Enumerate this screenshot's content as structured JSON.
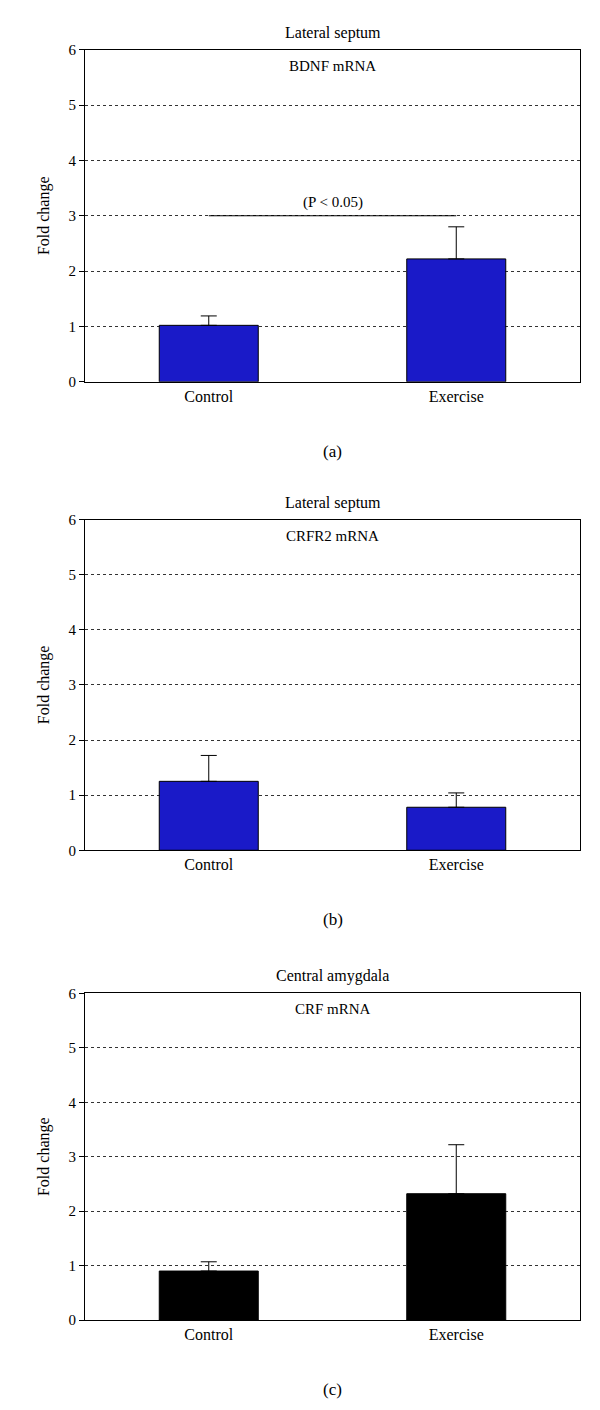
{
  "chart_data": [
    {
      "type": "bar",
      "title": "Lateral septum",
      "subtitle": "BDNF mRNA",
      "x_label": "(a)",
      "y_label": "Fold change",
      "categories": [
        "Control",
        "Exercise"
      ],
      "values": [
        1.02,
        2.22
      ],
      "error": [
        0.17,
        0.58
      ],
      "color": "#1a1ac8",
      "ylim": [
        0,
        6
      ],
      "yticks": [
        0,
        1,
        2,
        3,
        4,
        5,
        6
      ],
      "grid": true,
      "annotations": [
        {
          "text": "(P < 0.05)",
          "x0": "Control",
          "x1": "Exercise",
          "y": 3
        }
      ]
    },
    {
      "type": "bar",
      "title": "Lateral septum",
      "subtitle": "CRFR2 mRNA",
      "x_label": "(b)",
      "y_label": "Fold change",
      "categories": [
        "Control",
        "Exercise"
      ],
      "values": [
        1.25,
        0.78
      ],
      "error": [
        0.47,
        0.26
      ],
      "color": "#1a1ac8",
      "ylim": [
        0,
        6
      ],
      "yticks": [
        0,
        1,
        2,
        3,
        4,
        5,
        6
      ],
      "grid": true
    },
    {
      "type": "bar",
      "title": "Central amygdala",
      "subtitle": "CRF mRNA",
      "x_label": "(c)",
      "y_label": "Fold change",
      "categories": [
        "Control",
        "Exercise"
      ],
      "values": [
        0.9,
        2.32
      ],
      "error": [
        0.17,
        0.9
      ],
      "color": "#000000",
      "ylim": [
        0,
        6
      ],
      "yticks": [
        0,
        1,
        2,
        3,
        4,
        5,
        6
      ],
      "grid": true
    }
  ]
}
